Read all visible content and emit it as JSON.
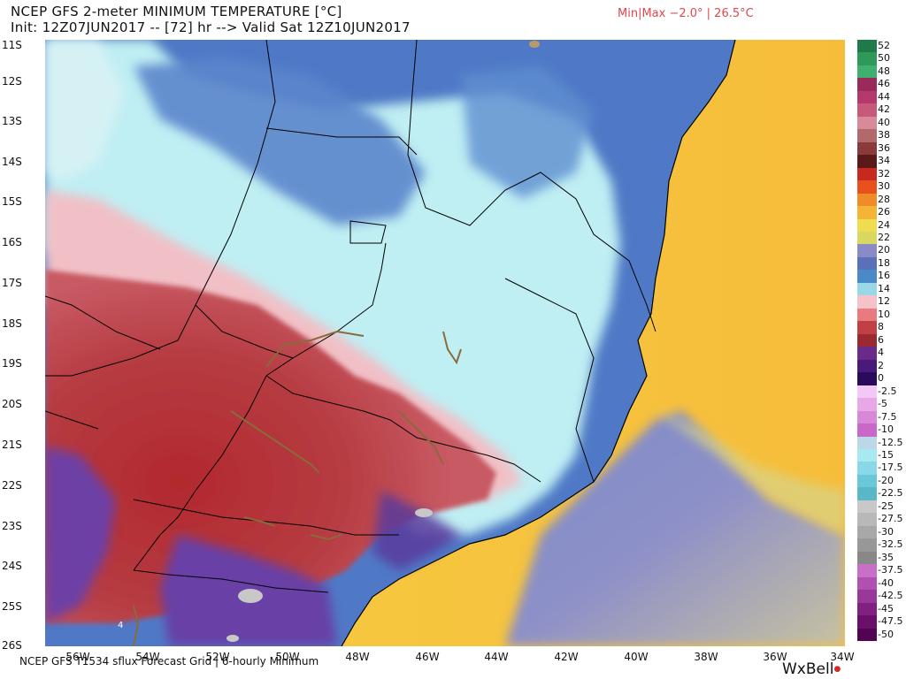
{
  "header": {
    "title": "NCEP GFS 2-meter MINIMUM TEMPERATURE [°C]",
    "init_line": "Init: 12Z07JUN2017 -- [72] hr --> Valid Sat 12Z10JUN2017",
    "minmax": "Min|Max −2.0° | 26.5°C"
  },
  "footer": {
    "source": "NCEP GFS T1534 sflux Forecast Grid | 6-hourly Minimum",
    "logo": "WxBell",
    "logo_dot": "●"
  },
  "map": {
    "lat_labels": [
      "11S",
      "12S",
      "13S",
      "14S",
      "15S",
      "16S",
      "17S",
      "18S",
      "19S",
      "20S",
      "21S",
      "22S",
      "23S",
      "24S",
      "25S",
      "26S"
    ],
    "lon_labels": [
      "56W",
      "54W",
      "52W",
      "50W",
      "48W",
      "46W",
      "44W",
      "42W",
      "40W",
      "38W",
      "36W",
      "34W"
    ],
    "inland_marker": "4",
    "colors": {
      "ocean_warm": "#f6bf3a",
      "ocean_mid": "#f0e05a",
      "ocean_cool": "#8a8ec9",
      "cold_blue": "#4a73c4",
      "light_cyan": "#c8f0f4",
      "pink": "#f4c2c8",
      "red": "#b63a3e",
      "purple": "#6a3aa5",
      "border": "#000000",
      "river": "#8a6a3a"
    }
  },
  "colorbar": {
    "labels": [
      "52",
      "50",
      "48",
      "46",
      "44",
      "42",
      "40",
      "38",
      "36",
      "34",
      "32",
      "30",
      "28",
      "26",
      "24",
      "22",
      "20",
      "18",
      "16",
      "14",
      "12",
      "10",
      "8",
      "6",
      "4",
      "2",
      "0",
      "-2.5",
      "-5",
      "-7.5",
      "-10",
      "-12.5",
      "-15",
      "-17.5",
      "-20",
      "-22.5",
      "-25",
      "-27.5",
      "-30",
      "-32.5",
      "-35",
      "-37.5",
      "-40",
      "-42.5",
      "-45",
      "-47.5",
      "-50"
    ],
    "colors": [
      "#1f7a4a",
      "#2e9a5a",
      "#3fb070",
      "#9a2a5a",
      "#b33a6a",
      "#c75a7a",
      "#d98a9a",
      "#b06a6a",
      "#8a3a3a",
      "#5a1a1a",
      "#c8281e",
      "#e8501e",
      "#f08c28",
      "#f4b436",
      "#f0dc50",
      "#d8d860",
      "#8a8ac8",
      "#5a70b8",
      "#4a8ac8",
      "#9ad8e8",
      "#f4c2c8",
      "#e87a80",
      "#c24044",
      "#9a2a30",
      "#6a2a8a",
      "#4a1a7a",
      "#2a0a5a",
      "#f4c8f4",
      "#e8a8e8",
      "#d888d8",
      "#c868c8",
      "#bcd8e8",
      "#a8e8f0",
      "#88d8e8",
      "#68c8d8",
      "#58b8c8",
      "#c8c8c8",
      "#b8b8b8",
      "#a8a8a8",
      "#989898",
      "#888888",
      "#c870c8",
      "#b050b0",
      "#983898",
      "#802080",
      "#6a106a",
      "#520452"
    ]
  }
}
